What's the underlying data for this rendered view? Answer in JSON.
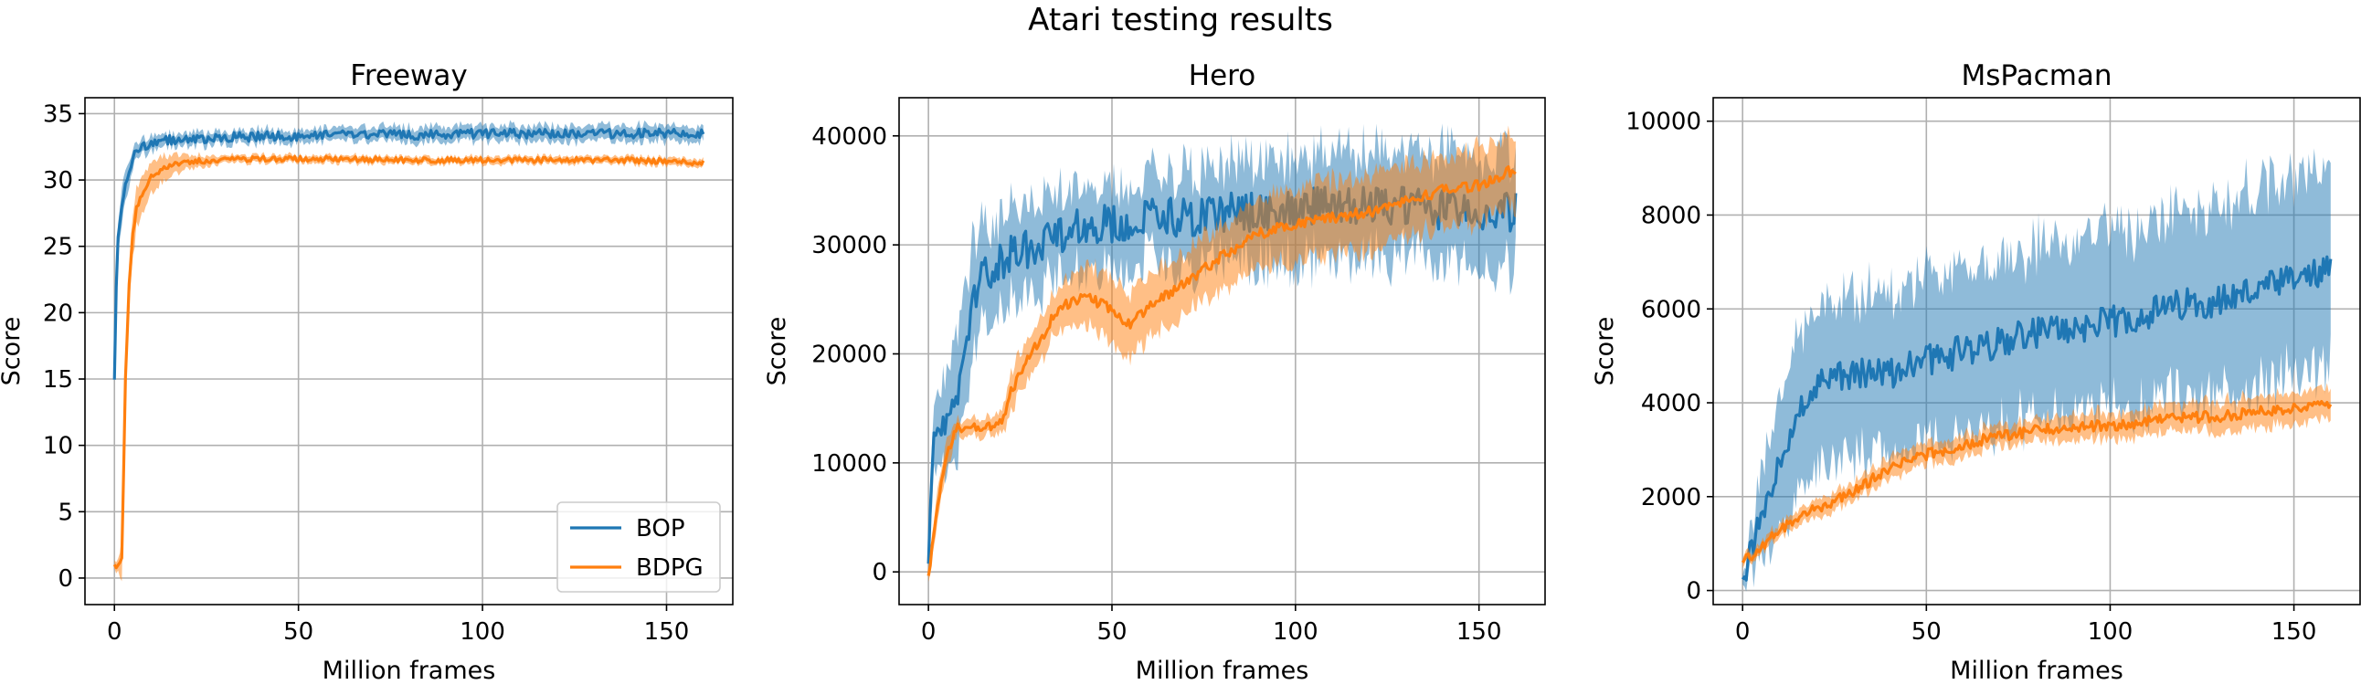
{
  "figure": {
    "title": "Atari testing results"
  },
  "colors": {
    "BOP": "#1f77b4",
    "BDPG": "#ff7f0e",
    "grid": "#b0b0b0"
  },
  "chart_data": [
    {
      "type": "line",
      "title": "Freeway",
      "xlabel": "Million frames",
      "ylabel": "Score",
      "xlim": [
        -8,
        168
      ],
      "ylim": [
        -2,
        36.2
      ],
      "xticks": [
        "0",
        "50",
        "100",
        "150"
      ],
      "yticks": [
        "0",
        "5",
        "10",
        "15",
        "20",
        "25",
        "30",
        "35"
      ],
      "grid": true,
      "legend": {
        "position": "lower-right",
        "entries": [
          "BOP",
          "BDPG"
        ]
      },
      "series": [
        {
          "name": "BOP",
          "color": "#1f77b4",
          "x": [
            0,
            0.5,
            1,
            2,
            3,
            4,
            5,
            6,
            8,
            10,
            15,
            20,
            30,
            40,
            50,
            60,
            80,
            100,
            120,
            140,
            160
          ],
          "y": [
            14.7,
            22,
            26,
            28,
            29.5,
            30.8,
            31.5,
            32.2,
            32.6,
            32.8,
            33,
            33.1,
            33.2,
            33.3,
            33.3,
            33.4,
            33.4,
            33.5,
            33.5,
            33.5,
            33.5
          ],
          "band": [
            0.1,
            1.5,
            1.5,
            1.5,
            1.2,
            1.0,
            0.8,
            0.6,
            0.6,
            0.6,
            0.5,
            0.5,
            0.5,
            0.5,
            0.5,
            0.5,
            0.6,
            0.6,
            0.6,
            0.6,
            0.6
          ],
          "noise": 0.35
        },
        {
          "name": "BDPG",
          "color": "#ff7f0e",
          "x": [
            0,
            1,
            2,
            2.5,
            3,
            4,
            5,
            6,
            8,
            10,
            13,
            16,
            20,
            30,
            40,
            50,
            60,
            80,
            100,
            120,
            140,
            160
          ],
          "y": [
            0.9,
            0.9,
            1.5,
            8,
            15,
            22,
            26,
            27.8,
            29.3,
            30.2,
            30.8,
            31.2,
            31.4,
            31.5,
            31.6,
            31.6,
            31.6,
            31.5,
            31.5,
            31.5,
            31.5,
            31.3
          ],
          "band": [
            0.4,
            0.5,
            1.5,
            2.0,
            2.0,
            2.0,
            1.8,
            1.6,
            1.4,
            1.2,
            1.0,
            0.8,
            0.5,
            0.3,
            0.3,
            0.3,
            0.3,
            0.3,
            0.3,
            0.3,
            0.3,
            0.3
          ],
          "noise": 0.2
        }
      ]
    },
    {
      "type": "line",
      "title": "Hero",
      "xlabel": "Million frames",
      "ylabel": "Score",
      "xlim": [
        -8,
        168
      ],
      "ylim": [
        -3000,
        43500
      ],
      "xticks": [
        "0",
        "50",
        "100",
        "150"
      ],
      "yticks": [
        "0",
        "10000",
        "20000",
        "30000",
        "40000"
      ],
      "grid": true,
      "series": [
        {
          "name": "BOP",
          "color": "#1f77b4",
          "x": [
            0,
            1,
            3,
            5,
            8,
            10,
            12,
            15,
            20,
            25,
            30,
            35,
            40,
            50,
            60,
            70,
            80,
            90,
            100,
            110,
            120,
            130,
            140,
            150,
            160
          ],
          "y": [
            0,
            11000,
            12500,
            13000,
            16000,
            20000,
            24000,
            27500,
            28500,
            29500,
            30000,
            31000,
            31500,
            32000,
            32500,
            32500,
            33000,
            33000,
            33500,
            33500,
            33500,
            33500,
            33200,
            33000,
            33000
          ],
          "band": [
            1000,
            3000,
            4000,
            5000,
            6000,
            6000,
            6000,
            5000,
            4500,
            4500,
            4500,
            4000,
            4000,
            4000,
            4000,
            4500,
            4500,
            5000,
            5000,
            5000,
            5000,
            5000,
            5500,
            5500,
            5500
          ],
          "noise": 1800
        },
        {
          "name": "BDPG",
          "color": "#ff7f0e",
          "x": [
            0,
            2,
            5,
            8,
            12,
            20,
            22,
            25,
            30,
            35,
            40,
            45,
            50,
            55,
            60,
            65,
            70,
            80,
            90,
            100,
            110,
            120,
            130,
            140,
            150,
            160
          ],
          "y": [
            -500,
            5000,
            11000,
            13300,
            13300,
            13500,
            16000,
            18500,
            21000,
            24000,
            25000,
            25000,
            24000,
            22500,
            24500,
            25500,
            26500,
            29000,
            31000,
            32000,
            32500,
            33000,
            34000,
            35000,
            35500,
            37000
          ],
          "band": [
            500,
            1500,
            1500,
            800,
            800,
            1000,
            2000,
            2000,
            2000,
            2000,
            2500,
            3000,
            3000,
            3000,
            3000,
            3000,
            3000,
            3000,
            3500,
            3500,
            3500,
            3500,
            3500,
            3500,
            3500,
            3500
          ],
          "noise": 500
        }
      ]
    },
    {
      "type": "line",
      "title": "MsPacman",
      "xlabel": "Million frames",
      "ylabel": "Score",
      "xlim": [
        -8,
        168
      ],
      "ylim": [
        -300,
        10500
      ],
      "xticks": [
        "0",
        "50",
        "100",
        "150"
      ],
      "yticks": [
        "0",
        "2000",
        "4000",
        "6000",
        "8000",
        "10000"
      ],
      "grid": true,
      "series": [
        {
          "name": "BOP",
          "color": "#1f77b4",
          "x": [
            0,
            2,
            5,
            10,
            15,
            20,
            25,
            30,
            40,
            50,
            60,
            70,
            80,
            90,
            100,
            110,
            120,
            130,
            140,
            150,
            160
          ],
          "y": [
            200,
            700,
            1600,
            2800,
            3700,
            4300,
            4600,
            4600,
            4600,
            4900,
            5100,
            5300,
            5500,
            5600,
            5700,
            5900,
            6100,
            6200,
            6400,
            6600,
            6800
          ],
          "band": [
            100,
            400,
            1000,
            1500,
            1800,
            1800,
            1800,
            1800,
            1800,
            1800,
            1800,
            1900,
            1900,
            1900,
            2000,
            2000,
            2100,
            2100,
            2200,
            2200,
            2200
          ],
          "noise": 350
        },
        {
          "name": "BDPG",
          "color": "#ff7f0e",
          "x": [
            0,
            5,
            10,
            20,
            30,
            40,
            50,
            60,
            70,
            80,
            90,
            100,
            110,
            120,
            130,
            140,
            150,
            160
          ],
          "y": [
            600,
            950,
            1300,
            1750,
            2100,
            2600,
            2900,
            3100,
            3300,
            3400,
            3500,
            3500,
            3600,
            3700,
            3700,
            3800,
            3900,
            4000
          ],
          "band": [
            100,
            120,
            150,
            200,
            200,
            250,
            250,
            250,
            250,
            250,
            300,
            300,
            300,
            300,
            350,
            350,
            350,
            350
          ],
          "noise": 120
        }
      ]
    }
  ]
}
